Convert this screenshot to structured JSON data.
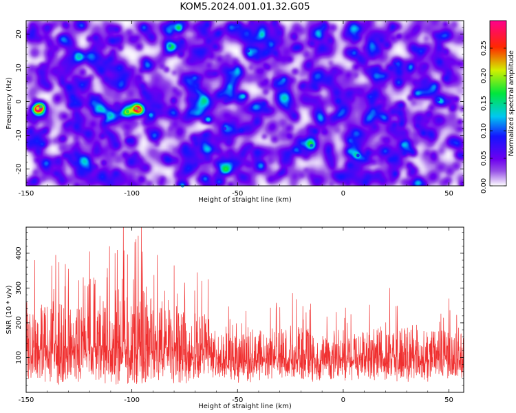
{
  "figure": {
    "title": "KOM5.2024.001.01.32.G05"
  },
  "chart_data": [
    {
      "type": "heatmap",
      "xlabel": "Height of straight line (km)",
      "ylabel": "Frequency (Hz)",
      "xlim": [
        -150,
        57
      ],
      "ylim": [
        -25,
        24
      ],
      "x_ticks": [
        "-150",
        "-100",
        "-50",
        "0",
        "50"
      ],
      "x_tick_values": [
        -150,
        -100,
        -50,
        0,
        50
      ],
      "y_ticks": [
        "-20",
        "-10",
        "0",
        "10",
        "20"
      ],
      "y_tick_values": [
        -20,
        -10,
        0,
        10,
        20
      ],
      "colorbar": {
        "label": "Normalized spectral amplitude",
        "range": [
          0,
          0.3
        ],
        "ticks": [
          "0.00",
          "0.05",
          "0.10",
          "0.15",
          "0.20",
          "0.25"
        ],
        "tick_values": [
          0.0,
          0.05,
          0.1,
          0.15,
          0.2,
          0.25
        ],
        "colormap": "white-purple-blue-cyan-green-yellow-red-magenta"
      },
      "background_value": 0.04,
      "hotspots": [
        {
          "x": -144.5,
          "y": -2.0,
          "value": 0.21
        },
        {
          "x": -143.0,
          "y": -1.5,
          "value": 0.15
        },
        {
          "x": -125.0,
          "y": 13.5,
          "value": 0.12
        },
        {
          "x": -110.5,
          "y": -4.0,
          "value": 0.12
        },
        {
          "x": -102.0,
          "y": -3.0,
          "value": 0.16
        },
        {
          "x": -96.5,
          "y": -2.5,
          "value": 0.23
        },
        {
          "x": -98.0,
          "y": -2.0,
          "value": 0.18
        },
        {
          "x": -91.0,
          "y": -4.0,
          "value": 0.12
        },
        {
          "x": -82.0,
          "y": 16.5,
          "value": 0.11
        },
        {
          "x": -76.0,
          "y": -25.0,
          "value": 0.12
        },
        {
          "x": -45.0,
          "y": 15.0,
          "value": 0.08
        },
        {
          "x": -32.0,
          "y": 5.0,
          "value": 0.08
        },
        {
          "x": -15.0,
          "y": -13.0,
          "value": 0.1
        },
        {
          "x": 7.0,
          "y": -16.0,
          "value": 0.09
        },
        {
          "x": 45.0,
          "y": 0.5,
          "value": 0.09
        },
        {
          "x": -140.0,
          "y": 22.0,
          "value": 0.07
        },
        {
          "x": -56.0,
          "y": -8.0,
          "value": 0.07
        },
        {
          "x": 25.0,
          "y": 12.0,
          "value": 0.07
        }
      ]
    },
    {
      "type": "line",
      "xlabel": "Height of straight line (km)",
      "ylabel": "SNR (10 * v/v)",
      "xlim": [
        -150,
        57
      ],
      "ylim": [
        0,
        475
      ],
      "x_ticks": [
        "-150",
        "-100",
        "-50",
        "0",
        "50"
      ],
      "x_tick_values": [
        -150,
        -100,
        -50,
        0,
        50
      ],
      "y_ticks": [
        "100",
        "200",
        "300",
        "400"
      ],
      "y_tick_values": [
        100,
        200,
        300,
        400
      ],
      "color": "#f03030",
      "envelope": {
        "x": [
          -150,
          -140,
          -130,
          -120,
          -110,
          -105,
          -100,
          -95,
          -90,
          -80,
          -70,
          -60,
          -50,
          -40,
          -30,
          -20,
          -10,
          0,
          10,
          20,
          30,
          40,
          50,
          57
        ],
        "upper": [
          330,
          380,
          390,
          330,
          370,
          475,
          420,
          475,
          380,
          330,
          330,
          310,
          290,
          270,
          260,
          270,
          260,
          250,
          250,
          260,
          270,
          250,
          260,
          250
        ],
        "lower": [
          30,
          25,
          20,
          20,
          15,
          10,
          10,
          15,
          20,
          20,
          25,
          25,
          25,
          30,
          30,
          30,
          30,
          30,
          30,
          30,
          30,
          30,
          30,
          30
        ],
        "typical": [
          120,
          130,
          130,
          120,
          130,
          140,
          135,
          140,
          125,
          115,
          110,
          105,
          100,
          100,
          95,
          95,
          95,
          95,
          95,
          95,
          95,
          95,
          95,
          95
        ]
      },
      "peaks": [
        {
          "x": -104.0,
          "y": 475
        },
        {
          "x": -95.5,
          "y": 475
        },
        {
          "x": -97.0,
          "y": 450
        },
        {
          "x": -110.5,
          "y": 420
        },
        {
          "x": -136.0,
          "y": 395
        },
        {
          "x": -120.0,
          "y": 405
        },
        {
          "x": -146.0,
          "y": 380
        },
        {
          "x": -108.0,
          "y": 400
        },
        {
          "x": -88.0,
          "y": 395
        },
        {
          "x": -130.0,
          "y": 355
        },
        {
          "x": -80.0,
          "y": 365
        },
        {
          "x": -69.0,
          "y": 345
        },
        {
          "x": -64.0,
          "y": 325
        },
        {
          "x": -24.0,
          "y": 285
        },
        {
          "x": 22.0,
          "y": 300
        },
        {
          "x": 50.0,
          "y": 270
        }
      ],
      "n_points": 2000,
      "seed": 20240101
    }
  ]
}
